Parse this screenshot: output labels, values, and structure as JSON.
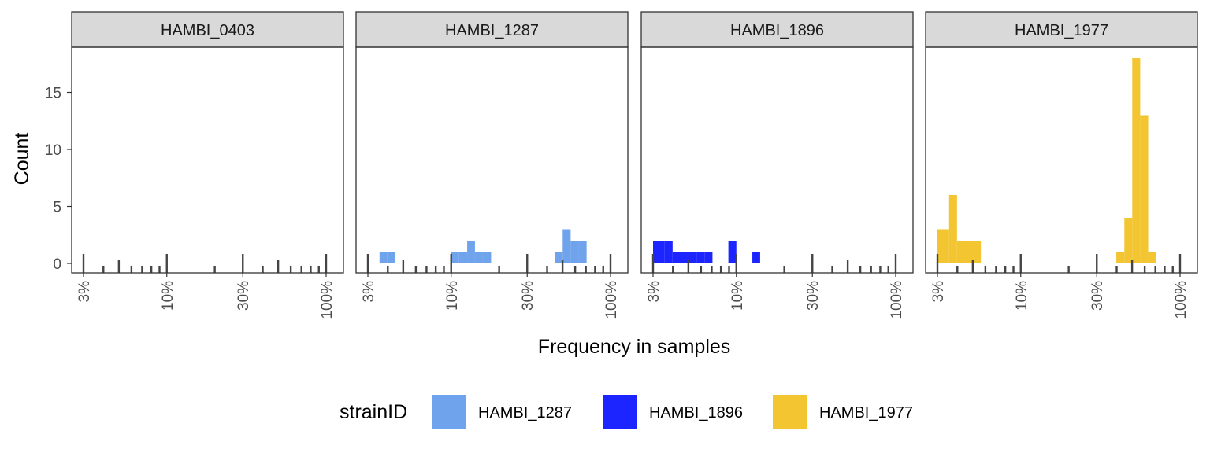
{
  "chart_data": {
    "type": "bar",
    "xlabel": "Frequency in samples",
    "ylabel": "Count",
    "x_scale": "log10",
    "xlim": [
      0.03,
      1.0
    ],
    "ylim": [
      0,
      18
    ],
    "y_ticks": [
      0,
      5,
      10,
      15
    ],
    "x_ticks": [
      {
        "value": 0.03,
        "label": "3%"
      },
      {
        "value": 0.1,
        "label": "10%"
      },
      {
        "value": 0.3,
        "label": "30%"
      },
      {
        "value": 1.0,
        "label": "100%"
      }
    ],
    "facets": [
      "HAMBI_0403",
      "HAMBI_1287",
      "HAMBI_1896",
      "HAMBI_1977"
    ],
    "legend": {
      "title": "strainID",
      "position": "bottom",
      "entries": [
        {
          "name": "HAMBI_1287",
          "color": "#6fa3ec"
        },
        {
          "name": "HAMBI_1896",
          "color": "#1c24ff"
        },
        {
          "name": "HAMBI_1977",
          "color": "#f2c531"
        }
      ]
    },
    "rug_ticks": [
      0.03,
      0.04,
      0.05,
      0.06,
      0.07,
      0.08,
      0.09,
      0.1,
      0.2,
      0.3,
      0.4,
      0.5,
      0.6,
      0.7,
      0.8,
      0.9,
      1.0
    ],
    "series": [
      {
        "name": "HAMBI_0403",
        "facet": "HAMBI_0403",
        "bins": []
      },
      {
        "name": "HAMBI_1287",
        "facet": "HAMBI_1287",
        "color": "#6fa3ec",
        "bins": [
          {
            "x0": 0.0355,
            "x1": 0.0398,
            "count": 1
          },
          {
            "x0": 0.0398,
            "x1": 0.0447,
            "count": 1
          },
          {
            "x0": 0.1,
            "x1": 0.112,
            "count": 1
          },
          {
            "x0": 0.112,
            "x1": 0.126,
            "count": 1
          },
          {
            "x0": 0.126,
            "x1": 0.141,
            "count": 2
          },
          {
            "x0": 0.141,
            "x1": 0.158,
            "count": 1
          },
          {
            "x0": 0.158,
            "x1": 0.178,
            "count": 1
          },
          {
            "x0": 0.447,
            "x1": 0.501,
            "count": 1
          },
          {
            "x0": 0.501,
            "x1": 0.562,
            "count": 3
          },
          {
            "x0": 0.562,
            "x1": 0.631,
            "count": 2
          },
          {
            "x0": 0.631,
            "x1": 0.708,
            "count": 2
          }
        ]
      },
      {
        "name": "HAMBI_1896",
        "facet": "HAMBI_1896",
        "color": "#1c24ff",
        "bins": [
          {
            "x0": 0.03,
            "x1": 0.0355,
            "count": 2
          },
          {
            "x0": 0.0355,
            "x1": 0.0398,
            "count": 2
          },
          {
            "x0": 0.0398,
            "x1": 0.0447,
            "count": 1
          },
          {
            "x0": 0.0447,
            "x1": 0.0501,
            "count": 1
          },
          {
            "x0": 0.0501,
            "x1": 0.0562,
            "count": 1
          },
          {
            "x0": 0.0562,
            "x1": 0.0631,
            "count": 1
          },
          {
            "x0": 0.0631,
            "x1": 0.0708,
            "count": 1
          },
          {
            "x0": 0.0891,
            "x1": 0.1,
            "count": 2
          },
          {
            "x0": 0.126,
            "x1": 0.141,
            "count": 1
          }
        ]
      },
      {
        "name": "HAMBI_1977",
        "facet": "HAMBI_1977",
        "color": "#f2c531",
        "bins": [
          {
            "x0": 0.03,
            "x1": 0.0355,
            "count": 3
          },
          {
            "x0": 0.0355,
            "x1": 0.0398,
            "count": 6
          },
          {
            "x0": 0.0398,
            "x1": 0.0447,
            "count": 2
          },
          {
            "x0": 0.0447,
            "x1": 0.0501,
            "count": 2
          },
          {
            "x0": 0.0501,
            "x1": 0.0562,
            "count": 2
          },
          {
            "x0": 0.398,
            "x1": 0.447,
            "count": 1
          },
          {
            "x0": 0.447,
            "x1": 0.501,
            "count": 4
          },
          {
            "x0": 0.501,
            "x1": 0.562,
            "count": 18
          },
          {
            "x0": 0.562,
            "x1": 0.631,
            "count": 13
          },
          {
            "x0": 0.631,
            "x1": 0.708,
            "count": 1
          }
        ]
      }
    ]
  }
}
